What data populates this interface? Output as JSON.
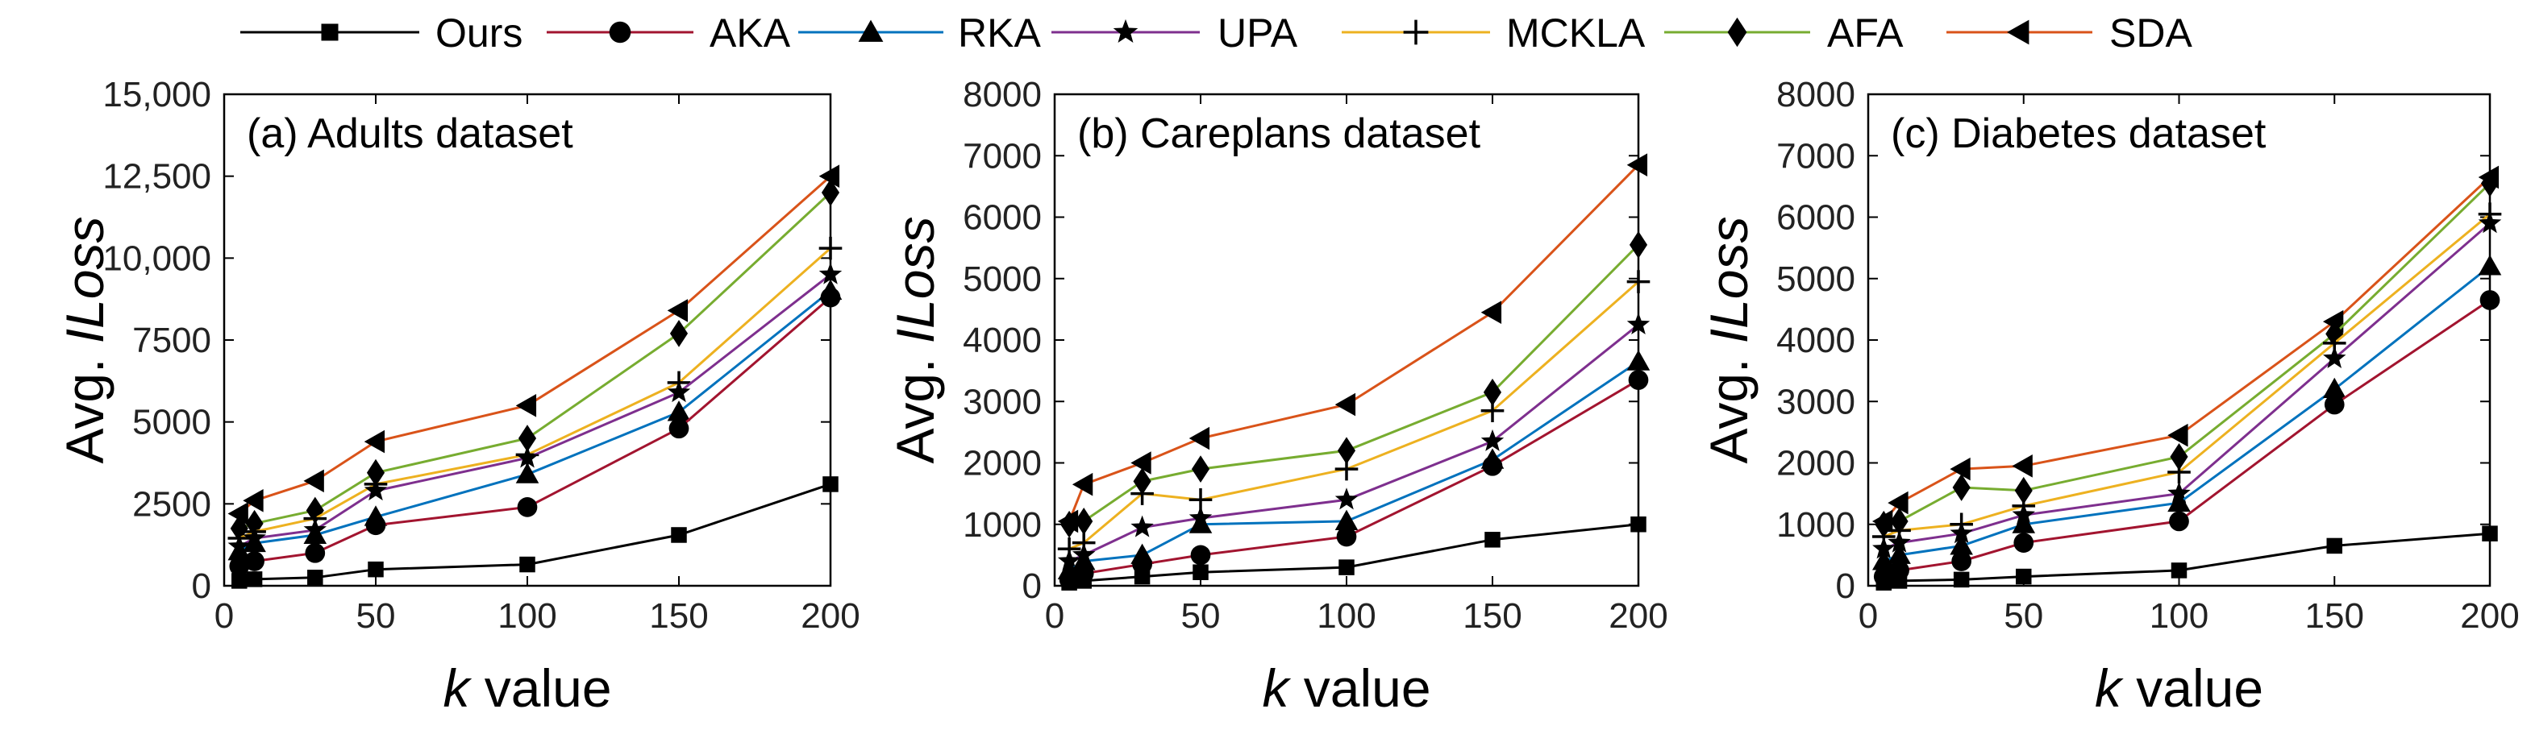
{
  "legend": [
    {
      "name": "Ours",
      "color": "#000000",
      "marker": "square"
    },
    {
      "name": "AKA",
      "color": "#a2142f",
      "marker": "circle"
    },
    {
      "name": "RKA",
      "color": "#0072bd",
      "marker": "triangle"
    },
    {
      "name": "UPA",
      "color": "#7e2f8e",
      "marker": "star"
    },
    {
      "name": "MCKLA",
      "color": "#edb120",
      "marker": "plus"
    },
    {
      "name": "AFA",
      "color": "#77ac30",
      "marker": "diamond"
    },
    {
      "name": "SDA",
      "color": "#d95319",
      "marker": "triangle-left"
    }
  ],
  "chart_data": [
    {
      "type": "line",
      "title": "(a) Adults dataset",
      "xlabel_var": "k",
      "xlabel_rest": " value",
      "ylabel_prefix": "Avg. ",
      "ylabel_var": "ILoss",
      "xlim": [
        0,
        200
      ],
      "ylim": [
        0,
        15000
      ],
      "xticks": [
        0,
        50,
        100,
        150,
        200
      ],
      "xtick_labels": [
        "0",
        "50",
        "100",
        "150",
        "200"
      ],
      "yticks": [
        0,
        2500,
        5000,
        7500,
        10000,
        12500,
        15000
      ],
      "ytick_labels": [
        "0",
        "2500",
        "5000",
        "7500",
        "10,000",
        "12,500",
        "15,000"
      ],
      "x": [
        5,
        10,
        30,
        50,
        100,
        150,
        200
      ],
      "series": [
        {
          "name": "Ours",
          "values": [
            150,
            200,
            250,
            500,
            650,
            1550,
            3100
          ]
        },
        {
          "name": "AKA",
          "values": [
            600,
            750,
            1000,
            1850,
            2400,
            4800,
            8800
          ]
        },
        {
          "name": "RKA",
          "values": [
            1050,
            1300,
            1550,
            2100,
            3400,
            5300,
            9000
          ]
        },
        {
          "name": "UPA",
          "values": [
            1200,
            1450,
            1700,
            2900,
            3900,
            5900,
            9500
          ]
        },
        {
          "name": "MCKLA",
          "values": [
            1450,
            1650,
            2050,
            3100,
            4000,
            6200,
            10300
          ]
        },
        {
          "name": "AFA",
          "values": [
            1750,
            1900,
            2300,
            3450,
            4500,
            7700,
            12000
          ]
        },
        {
          "name": "SDA",
          "values": [
            2200,
            2600,
            3200,
            4400,
            5500,
            8400,
            12500
          ]
        }
      ]
    },
    {
      "type": "line",
      "title": "(b) Careplans dataset",
      "xlabel_var": "k",
      "xlabel_rest": " value",
      "ylabel_prefix": "Avg. ",
      "ylabel_var": "ILoss",
      "xlim": [
        0,
        200
      ],
      "ylim": [
        0,
        8000
      ],
      "xticks": [
        0,
        50,
        100,
        150,
        200
      ],
      "xtick_labels": [
        "0",
        "50",
        "100",
        "150",
        "200"
      ],
      "yticks": [
        0,
        1000,
        2000,
        3000,
        4000,
        5000,
        6000,
        7000,
        8000
      ],
      "ytick_labels": [
        "0",
        "1000",
        "2000",
        "3000",
        "4000",
        "5000",
        "6000",
        "7000",
        "8000"
      ],
      "x": [
        5,
        10,
        30,
        50,
        100,
        150,
        200
      ],
      "series": [
        {
          "name": "Ours",
          "values": [
            50,
            80,
            150,
            220,
            300,
            750,
            1000
          ]
        },
        {
          "name": "AKA",
          "values": [
            100,
            200,
            350,
            500,
            800,
            1950,
            3350
          ]
        },
        {
          "name": "RKA",
          "values": [
            250,
            400,
            500,
            1000,
            1050,
            2050,
            3650
          ]
        },
        {
          "name": "UPA",
          "values": [
            400,
            500,
            950,
            1100,
            1400,
            2350,
            4250
          ]
        },
        {
          "name": "MCKLA",
          "values": [
            600,
            700,
            1500,
            1400,
            1900,
            2850,
            4950
          ]
        },
        {
          "name": "AFA",
          "values": [
            1000,
            1050,
            1700,
            1900,
            2200,
            3150,
            5550
          ]
        },
        {
          "name": "SDA",
          "values": [
            1050,
            1650,
            2000,
            2400,
            2950,
            4450,
            6850
          ]
        }
      ]
    },
    {
      "type": "line",
      "title": "(c) Diabetes dataset",
      "xlabel_var": "k",
      "xlabel_rest": " value",
      "ylabel_prefix": "Avg. ",
      "ylabel_var": "ILoss",
      "xlim": [
        0,
        200
      ],
      "ylim": [
        0,
        8000
      ],
      "xticks": [
        0,
        50,
        100,
        150,
        200
      ],
      "xtick_labels": [
        "0",
        "50",
        "100",
        "150",
        "200"
      ],
      "yticks": [
        0,
        1000,
        2000,
        3000,
        4000,
        5000,
        6000,
        7000,
        8000
      ],
      "ytick_labels": [
        "0",
        "1000",
        "2000",
        "3000",
        "4000",
        "5000",
        "6000",
        "7000",
        "8000"
      ],
      "x": [
        5,
        10,
        30,
        50,
        100,
        150,
        200
      ],
      "series": [
        {
          "name": "Ours",
          "values": [
            50,
            80,
            100,
            150,
            250,
            650,
            850
          ]
        },
        {
          "name": "AKA",
          "values": [
            150,
            250,
            400,
            700,
            1050,
            2950,
            4650
          ]
        },
        {
          "name": "RKA",
          "values": [
            400,
            500,
            650,
            1000,
            1350,
            3200,
            5200
          ]
        },
        {
          "name": "UPA",
          "values": [
            600,
            700,
            850,
            1150,
            1500,
            3700,
            5900
          ]
        },
        {
          "name": "MCKLA",
          "values": [
            800,
            900,
            1000,
            1300,
            1850,
            3950,
            6050
          ]
        },
        {
          "name": "AFA",
          "values": [
            1000,
            1050,
            1600,
            1550,
            2100,
            4100,
            6550
          ]
        },
        {
          "name": "SDA",
          "values": [
            1050,
            1350,
            1900,
            1950,
            2450,
            4300,
            6650
          ]
        }
      ]
    }
  ]
}
